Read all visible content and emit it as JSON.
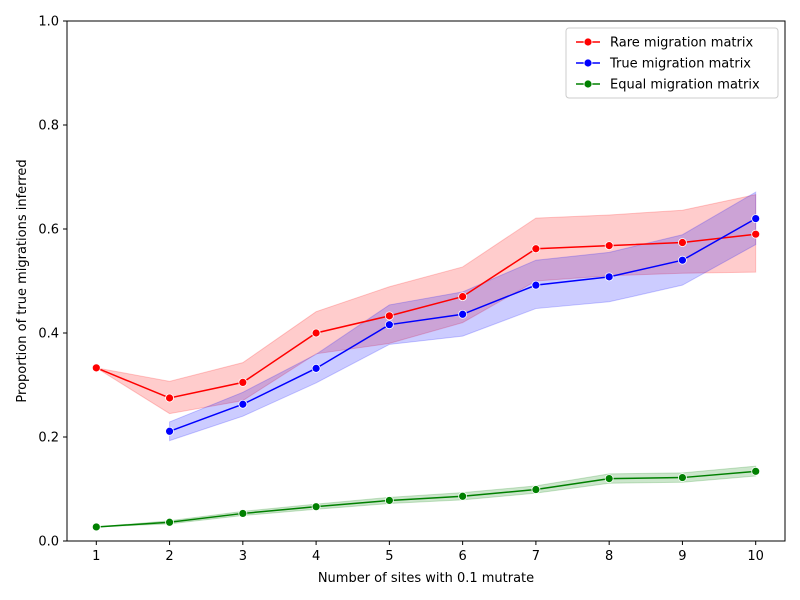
{
  "chart_data": {
    "type": "line",
    "title": "",
    "xlabel": "Number of sites with 0.1 mutrate",
    "ylabel": "Proportion of true migrations inferred",
    "xlim": [
      0.6,
      10.4
    ],
    "ylim": [
      0.0,
      1.0
    ],
    "x_ticks": [
      1,
      2,
      3,
      4,
      5,
      6,
      7,
      8,
      9,
      10
    ],
    "y_ticks": [
      0.0,
      0.2,
      0.4,
      0.6,
      0.8,
      1.0
    ],
    "grid": false,
    "legend_position": "top-right",
    "series": [
      {
        "name": "Rare migration matrix",
        "color": "#ff0000",
        "x": [
          1,
          2,
          3,
          4,
          5,
          6,
          7,
          8,
          9,
          10
        ],
        "y": [
          0.333,
          0.275,
          0.305,
          0.4,
          0.433,
          0.47,
          0.562,
          0.568,
          0.574,
          0.59
        ],
        "ci_lower": [
          0.333,
          0.245,
          0.27,
          0.36,
          0.38,
          0.42,
          0.5,
          0.51,
          0.515,
          0.517
        ],
        "ci_upper": [
          0.333,
          0.307,
          0.343,
          0.441,
          0.489,
          0.527,
          0.621,
          0.627,
          0.636,
          0.666
        ]
      },
      {
        "name": "True migration matrix",
        "color": "#0000ff",
        "x": [
          2,
          3,
          4,
          5,
          6,
          7,
          8,
          9,
          10
        ],
        "y": [
          0.211,
          0.263,
          0.332,
          0.416,
          0.436,
          0.492,
          0.508,
          0.54,
          0.62
        ],
        "ci_lower": [
          0.193,
          0.24,
          0.304,
          0.378,
          0.394,
          0.447,
          0.46,
          0.492,
          0.57
        ],
        "ci_upper": [
          0.229,
          0.286,
          0.359,
          0.454,
          0.479,
          0.54,
          0.555,
          0.589,
          0.671
        ]
      },
      {
        "name": "Equal migration matrix",
        "color": "#008000",
        "x": [
          1,
          2,
          3,
          4,
          5,
          6,
          7,
          8,
          9,
          10
        ],
        "y": [
          0.027,
          0.036,
          0.053,
          0.066,
          0.078,
          0.086,
          0.099,
          0.12,
          0.122,
          0.134
        ],
        "ci_lower": [
          0.027,
          0.033,
          0.049,
          0.061,
          0.072,
          0.079,
          0.092,
          0.111,
          0.113,
          0.125
        ],
        "ci_upper": [
          0.027,
          0.039,
          0.057,
          0.071,
          0.084,
          0.093,
          0.106,
          0.129,
          0.131,
          0.144
        ]
      }
    ]
  }
}
